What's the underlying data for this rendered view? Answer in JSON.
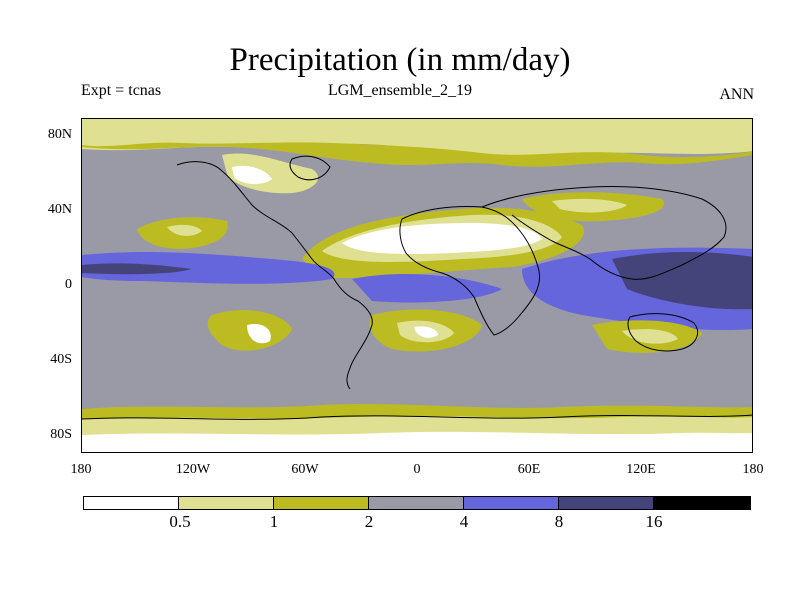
{
  "title": "Precipitation (in mm/day)",
  "experiment": "Expt = tcnas",
  "run": "LGM_ensemble_2_19",
  "season": "ANN",
  "lat_labels": [
    "80N",
    "40N",
    "0",
    "40S",
    "80S"
  ],
  "lon_labels": [
    "180",
    "120W",
    "60W",
    "0",
    "60E",
    "120E",
    "180"
  ],
  "colorbar": {
    "levels": [
      "0.5",
      "1",
      "2",
      "4",
      "8",
      "16"
    ],
    "colors": [
      "#ffffff",
      "#e0e092",
      "#bcbc22",
      "#9a9aa6",
      "#6565dc",
      "#44447a",
      "#000000"
    ]
  },
  "palette": {
    "lt05": "#ffffff",
    "c05_1": "#e0e092",
    "c1_2": "#bcbc22",
    "c2_4": "#9a9aa6",
    "c4_8": "#6565dc",
    "c8_16": "#44447a",
    "gt16": "#000000"
  }
}
